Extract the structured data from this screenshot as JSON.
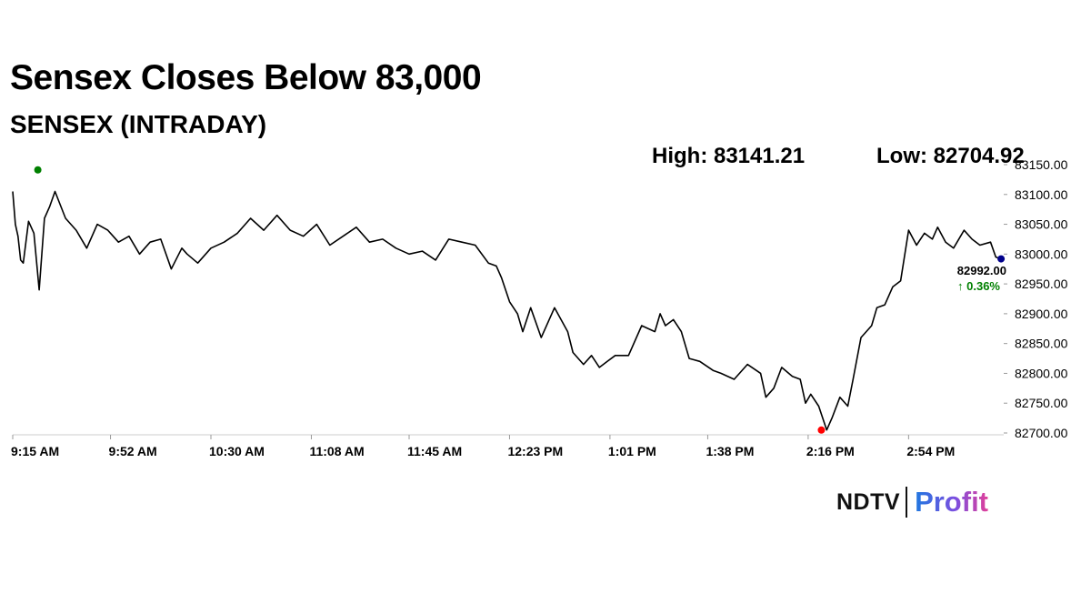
{
  "headline": "Sensex Closes Below 83,000",
  "subtitle": "SENSEX (INTRADAY)",
  "high_label": "High: 83141.21",
  "low_label": "Low: 82704.92",
  "brand": {
    "ndtv": "NDTV",
    "separator": "|",
    "profit": "Profit"
  },
  "colors": {
    "line": "#000000",
    "high_marker": "#008000",
    "low_marker": "#ff0000",
    "last_marker": "#00008b",
    "change_positive": "#008000"
  },
  "chart_data": {
    "type": "line",
    "title": "SENSEX (INTRADAY)",
    "xlabel": "",
    "ylabel": "",
    "ylim": [
      82700,
      83150
    ],
    "y_ticks": [
      "83150.00",
      "83100.00",
      "83050.00",
      "83000.00",
      "82950.00",
      "82900.00",
      "82850.00",
      "82800.00",
      "82750.00",
      "82700.00"
    ],
    "x_ticks": [
      "9:15 AM",
      "9:52 AM",
      "10:30 AM",
      "11:08 AM",
      "11:45 AM",
      "12:23 PM",
      "1:01 PM",
      "1:38 PM",
      "2:16 PM",
      "2:54 PM"
    ],
    "x_tick_minutes": [
      0,
      37,
      75,
      113,
      150,
      188,
      226,
      263,
      301,
      339
    ],
    "x_range_minutes": [
      0,
      375
    ],
    "grid": false,
    "series": [
      {
        "x_minutes": [
          0,
          1,
          2,
          3,
          4,
          5,
          6,
          8,
          10,
          12,
          14,
          16,
          20,
          24,
          28,
          32,
          36,
          40,
          44,
          48,
          52,
          56,
          60,
          64,
          66,
          70,
          75,
          80,
          85,
          90,
          95,
          100,
          105,
          110,
          115,
          120,
          125,
          130,
          135,
          140,
          145,
          150,
          155,
          160,
          165,
          170,
          175,
          180,
          183,
          185,
          188,
          191,
          193,
          196,
          200,
          205,
          210,
          212,
          216,
          219,
          222,
          225,
          228,
          233,
          238,
          243,
          245,
          247,
          250,
          253,
          256,
          260,
          265,
          268,
          273,
          278,
          283,
          285,
          288,
          291,
          295,
          298,
          300,
          302,
          305,
          308,
          310,
          313,
          316,
          318,
          321,
          325,
          327,
          330,
          333,
          336,
          339,
          342,
          345,
          348,
          350,
          353,
          356,
          360,
          363,
          366,
          370,
          372,
          374
        ],
        "values": [
          83105,
          83050,
          83030,
          82990,
          82985,
          83020,
          83055,
          83035,
          82940,
          83060,
          83080,
          83105,
          83060,
          83040,
          83010,
          83050,
          83040,
          83020,
          83030,
          83000,
          83020,
          83025,
          82975,
          83010,
          83000,
          82985,
          83010,
          83020,
          83035,
          83060,
          83040,
          83065,
          83040,
          83030,
          83050,
          83015,
          83030,
          83045,
          83020,
          83025,
          83010,
          83000,
          83005,
          82990,
          83025,
          83020,
          83015,
          82985,
          82980,
          82960,
          82920,
          82900,
          82870,
          82910,
          82860,
          82910,
          82870,
          82835,
          82815,
          82830,
          82810,
          82820,
          82830,
          82830,
          82880,
          82870,
          82900,
          82880,
          82890,
          82870,
          82825,
          82820,
          82805,
          82800,
          82790,
          82815,
          82800,
          82760,
          82775,
          82810,
          82795,
          82790,
          82750,
          82765,
          82745,
          82705,
          82725,
          82760,
          82745,
          82790,
          82860,
          82880,
          82910,
          82915,
          82945,
          82955,
          83040,
          83015,
          83035,
          83025,
          83045,
          83020,
          83010,
          83040,
          83025,
          83015,
          83020,
          82995,
          82992
        ],
        "last_value": "82992.00",
        "change": "↑ 0.36%"
      }
    ],
    "markers": [
      {
        "type": "high",
        "x_minutes": 9.5,
        "value": 83141.21
      },
      {
        "type": "low",
        "x_minutes": 306,
        "value": 82704.92
      },
      {
        "type": "last",
        "x_minutes": 374,
        "value": 82992.0
      }
    ]
  }
}
